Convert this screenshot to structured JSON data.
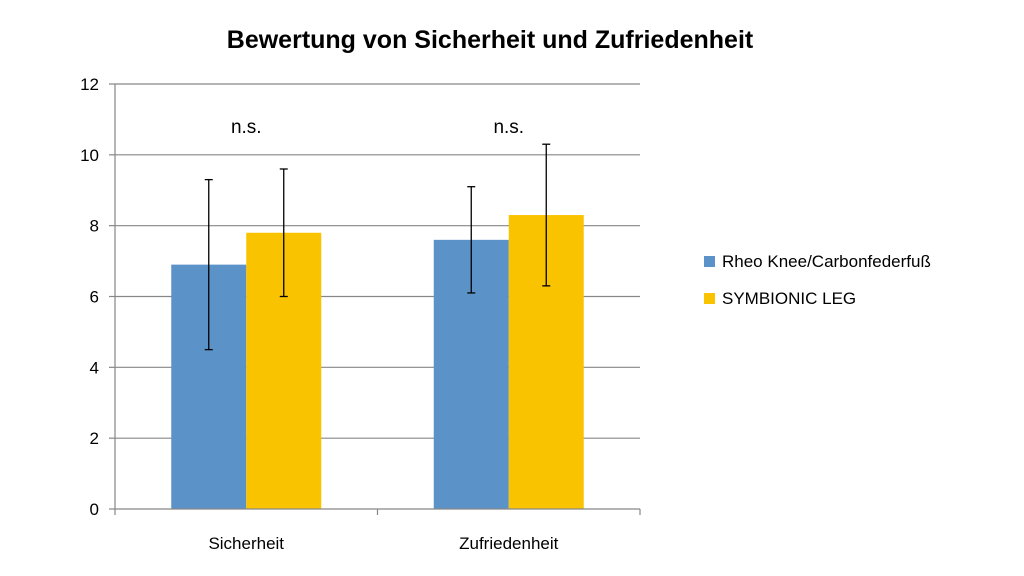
{
  "chart_data": {
    "type": "bar",
    "title": "Bewertung von Sicherheit und Zufriedenheit",
    "xlabel": "",
    "ylabel": "",
    "ylim": [
      0,
      12
    ],
    "yticks": [
      0,
      2,
      4,
      6,
      8,
      10,
      12
    ],
    "grid": true,
    "categories": [
      "Sicherheit",
      "Zufriedenheit"
    ],
    "series": [
      {
        "name": "Rheo Knee/Carbonfederfuß",
        "color": "#5B93C8",
        "values": [
          6.9,
          7.6
        ],
        "err_low": [
          4.5,
          6.1
        ],
        "err_high": [
          9.3,
          9.1
        ]
      },
      {
        "name": "SYMBIONIC LEG",
        "color": "#FAC300",
        "values": [
          7.8,
          8.3
        ],
        "err_low": [
          6.0,
          6.3
        ],
        "err_high": [
          9.6,
          10.3
        ]
      }
    ],
    "annotations": [
      "n.s.",
      "n.s."
    ],
    "legend_position": "right"
  }
}
